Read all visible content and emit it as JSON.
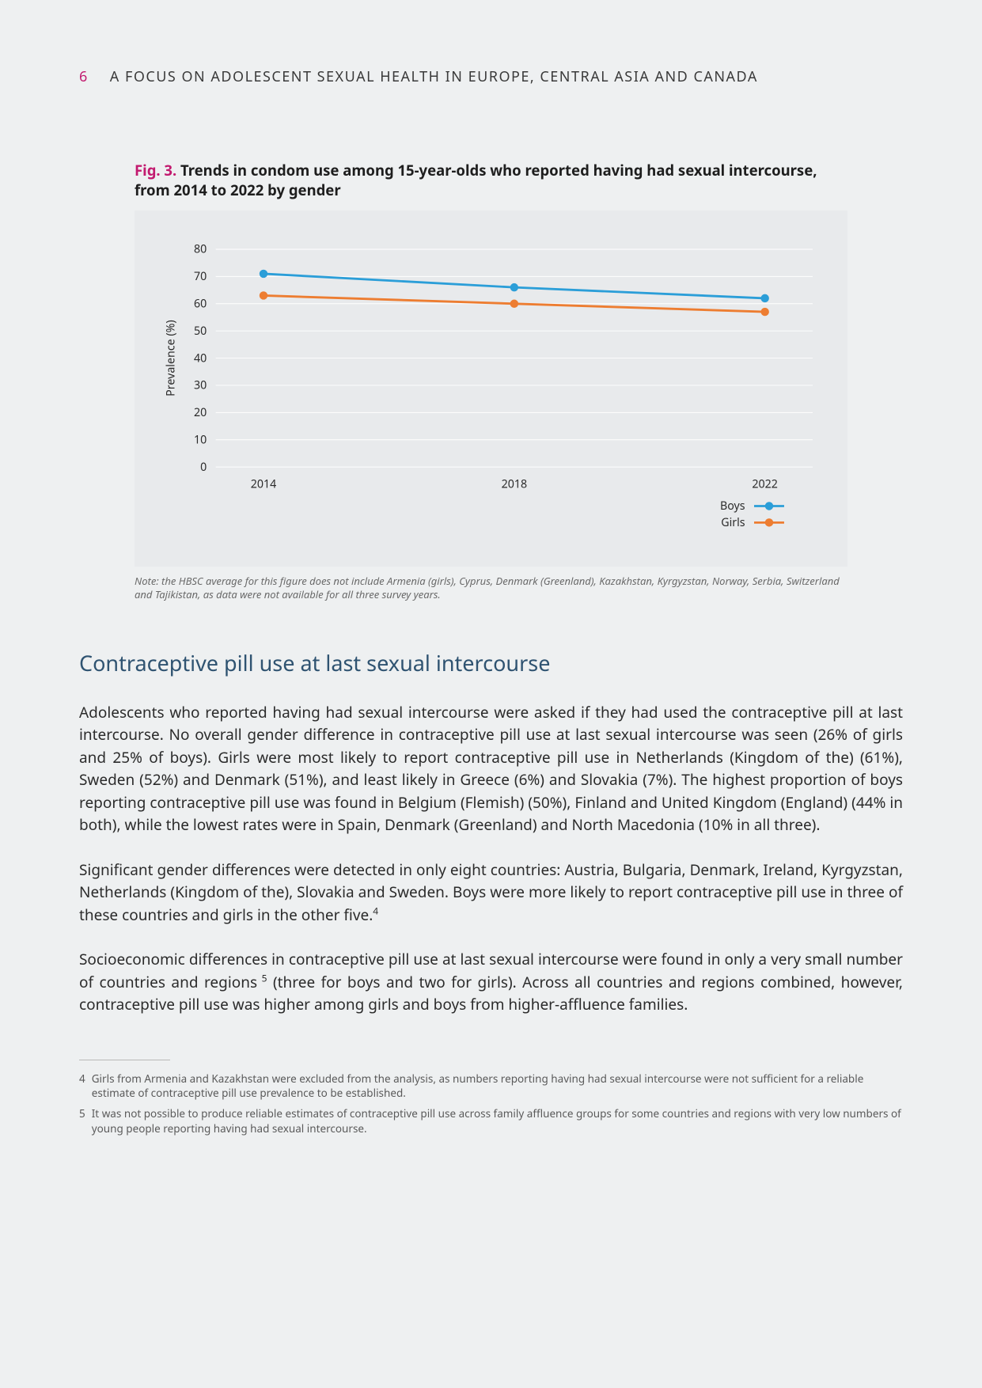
{
  "page_number": "6",
  "running_head": "A FOCUS ON ADOLESCENT SEXUAL HEALTH IN EUROPE, CENTRAL ASIA AND CANADA",
  "figure": {
    "label": "Fig. 3.",
    "caption": "Trends in condom use among 15-year-olds who reported having had sexual intercourse, from 2014 to 2022 by gender",
    "type": "line",
    "background_color": "#e8eaec",
    "grid_color": "#ffffff",
    "ylim": [
      0,
      80
    ],
    "ytick_step": 10,
    "ylabel": "Prevalence (%)",
    "x_categories": [
      "2014",
      "2018",
      "2022"
    ],
    "series": [
      {
        "name": "Boys",
        "color": "#2b9ed8",
        "marker": "circle",
        "values": [
          71,
          66,
          62
        ]
      },
      {
        "name": "Girls",
        "color": "#ed7d31",
        "marker": "circle",
        "values": [
          63,
          60,
          57
        ]
      }
    ],
    "line_width": 3,
    "marker_radius": 5.5,
    "label_fontsize": 15,
    "note": "Note: the HBSC average for this figure does not include Armenia (girls), Cyprus, Denmark (Greenland), Kazakhstan, Kyrgyzstan, Norway, Serbia, Switzerland and Tajikistan, as data were not available for all three survey years."
  },
  "section_heading": "Contraceptive pill use at last sexual intercourse",
  "paragraphs": {
    "p1": "Adolescents who reported having had sexual intercourse were asked if they had used the contraceptive pill at last intercourse. No overall gender difference in contraceptive pill use at last sexual intercourse was seen (26% of girls and 25% of boys). Girls were most likely to report contraceptive pill use in Netherlands (Kingdom of the) (61%), Sweden (52%) and Denmark (51%), and least likely in Greece (6%) and Slovakia (7%). The highest proportion of boys reporting contraceptive pill use was found in Belgium (Flemish) (50%), Finland and United Kingdom (England) (44% in both), while the lowest rates were in Spain, Denmark (Greenland) and North Macedonia (10% in all three).",
    "p2_a": "Significant gender differences were detected in only eight countries: Austria, Bulgaria, Denmark, Ireland, Kyrgyzstan, Netherlands (Kingdom of the), Slovakia and Sweden. Boys were more likely to report contraceptive pill use in three of these countries and girls in the other five.",
    "p3_a": "Socioeconomic differences in contraceptive pill use at last sexual intercourse were found in only a very small number of countries and regions",
    "p3_b": " (three for boys and two for girls). Across all countries and regions combined, however, contraceptive pill use was higher among girls and boys from higher-affluence families."
  },
  "footnotes": {
    "f4_num": "4",
    "f4": "Girls from Armenia and Kazakhstan were excluded from the analysis, as numbers reporting having had sexual intercourse were not sufficient for a reliable estimate of contraceptive pill use prevalence to be established.",
    "f5_num": "5",
    "f5": "It was not possible to produce reliable estimates of contraceptive pill use across family affluence groups for some countries and regions with very low numbers of young people reporting having had sexual intercourse."
  }
}
